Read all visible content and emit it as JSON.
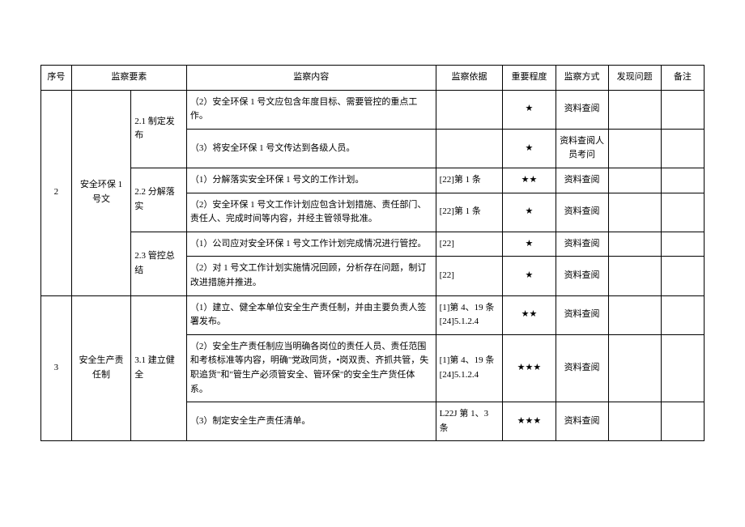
{
  "table": {
    "headers": {
      "seq": "序号",
      "element": "监察要素",
      "content": "监察内容",
      "basis": "监察依据",
      "importance": "重要程度",
      "method": "监察方式",
      "issue": "发现问题",
      "note": "备注"
    },
    "styling": {
      "font_size": 11,
      "border_color": "#000000",
      "background_color": "#ffffff",
      "text_color": "#000000",
      "line_height": 1.6,
      "col_widths": {
        "seq": 32,
        "element": 62,
        "sub": 58,
        "content": 260,
        "basis": 70,
        "importance": 55,
        "method": 55,
        "issue": 55,
        "note": 45
      }
    },
    "groups": [
      {
        "seq": "2",
        "element": "安全环保 1 号文",
        "subs": [
          {
            "label": "2.1 制定发布",
            "rows": [
              {
                "content": "（2）安全环保 1 号文应包含年度目标、需要管控的重点工作。",
                "basis": "",
                "importance": "★",
                "method": "资料查阅"
              },
              {
                "content": "（3）将安全环保 1 号文传达到各级人员。",
                "basis": "",
                "importance": "★",
                "method": "资料查阅人员考问"
              }
            ]
          },
          {
            "label": "2.2 分解落实",
            "rows": [
              {
                "content": "（1）分解落实安全环保 1 号文的工作计划。",
                "basis": "[22]第 1 条",
                "importance": "★★",
                "method": "资料查阅"
              },
              {
                "content": "（2）安全环保 1 号文工作计划应包含计划措施、责任部门、责任人、完成时间等内容，并经主管领导批准。",
                "basis": "[22]第 1 条",
                "importance": "★",
                "method": "资料查阅"
              }
            ]
          },
          {
            "label": "2.3 管控总结",
            "rows": [
              {
                "content": "（1）公司应对安全环保 1 号文工作计划完成情况进行管控。",
                "basis": "[22]",
                "importance": "★",
                "method": "资料查阅"
              },
              {
                "content": "（2）对 1 号文工作计划实施情况回顾，分析存在问题，制订改进措施并推进。",
                "basis": "[22]",
                "importance": "★",
                "method": "资料查阅"
              }
            ]
          }
        ]
      },
      {
        "seq": "3",
        "element": "安全生产责任制",
        "subs": [
          {
            "label": "3.1 建立健全",
            "rows": [
              {
                "content": "（1）建立、健全本单位安全生产责任制，并由主要负责人签署发布。",
                "basis": "[1]第 4、19 条[24]5.1.2.4",
                "importance": "★★",
                "method": "资料查阅"
              },
              {
                "content": "（2）安全生产责任制应当明确各岗位的责任人员、责任范围和考核标准等内容，明确\"党政同货，•岗双责、齐抓共管，失职追货\"和\"管生产必须管安全、管环保\"的安全生产货任体系。",
                "basis": "[1]第 4、19 条[24]5.1.2.4",
                "importance": "★★★",
                "method": "资料查阅"
              },
              {
                "content": "（3）制定安全生产责任清单。",
                "basis": "L22J 第 1、3 条",
                "importance": "★★★",
                "method": "资料查阅"
              }
            ]
          }
        ]
      }
    ]
  }
}
